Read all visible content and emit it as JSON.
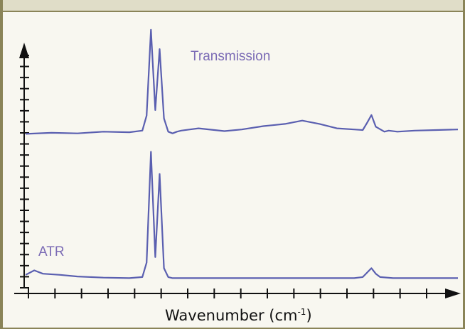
{
  "chart_data": {
    "type": "line",
    "title": "",
    "xlabel": "Wavenumber (cm",
    "xlabel_sup": "-1",
    "xlabel_close": ")",
    "ylabel": "",
    "x_ticks": 16,
    "y_ticks": 22,
    "grid": false,
    "legend": "none",
    "series_colors": [
      "#5a5fb0",
      "#5a5fb0"
    ],
    "label_color": "#7b6bb5",
    "xlim": [
      0,
      100
    ],
    "series": [
      {
        "name": "Transmission",
        "x": [
          0,
          6,
          12,
          18,
          24,
          27,
          28,
          29,
          30,
          31,
          32,
          33,
          34,
          35,
          36,
          38,
          40,
          46,
          50,
          55,
          60,
          64,
          68,
          72,
          76,
          78,
          79,
          80,
          81,
          83,
          84,
          86,
          90,
          95,
          100
        ],
        "y": [
          0.02,
          0.04,
          0.03,
          0.06,
          0.05,
          0.08,
          0.35,
          1.9,
          0.45,
          1.55,
          0.3,
          0.06,
          0.03,
          0.06,
          0.08,
          0.1,
          0.12,
          0.07,
          0.1,
          0.16,
          0.2,
          0.26,
          0.2,
          0.12,
          0.1,
          0.09,
          0.22,
          0.36,
          0.15,
          0.06,
          0.08,
          0.06,
          0.08,
          0.09,
          0.1
        ]
      },
      {
        "name": "ATR",
        "x": [
          0,
          2,
          4,
          8,
          12,
          18,
          24,
          27,
          28,
          29,
          30,
          31,
          32,
          33,
          34,
          36,
          40,
          50,
          60,
          70,
          76,
          78,
          79,
          80,
          81,
          82,
          85,
          90,
          95,
          100
        ],
        "y": [
          0.08,
          0.16,
          0.1,
          0.08,
          0.05,
          0.03,
          0.02,
          0.04,
          0.3,
          2.3,
          0.4,
          1.9,
          0.2,
          0.04,
          0.02,
          0.02,
          0.02,
          0.02,
          0.02,
          0.02,
          0.02,
          0.04,
          0.12,
          0.2,
          0.1,
          0.04,
          0.02,
          0.02,
          0.02,
          0.02
        ]
      }
    ]
  }
}
